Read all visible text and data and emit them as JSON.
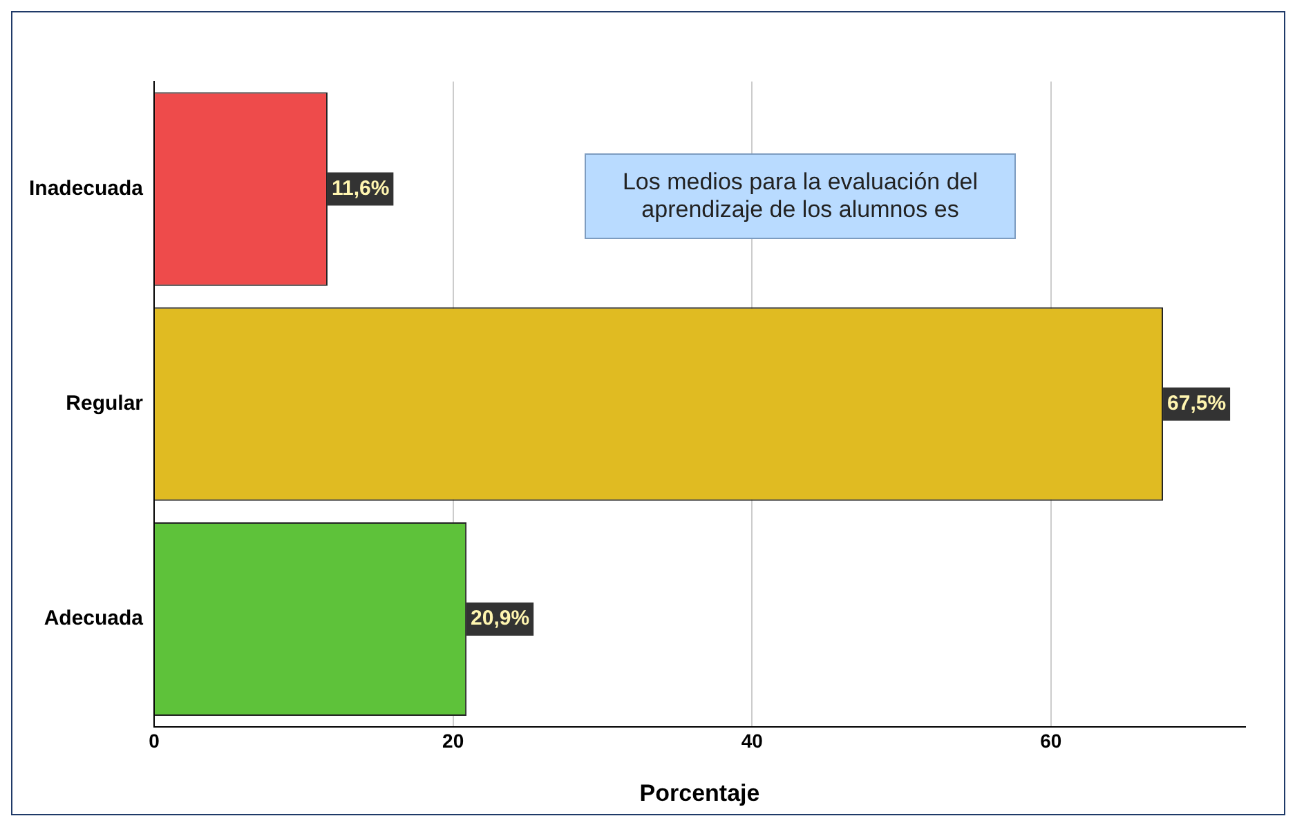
{
  "chart_data": {
    "type": "bar",
    "orientation": "horizontal",
    "categories": [
      "Inadecuada",
      "Regular",
      "Adecuada"
    ],
    "values": [
      11.6,
      67.5,
      20.9
    ],
    "colors": [
      "#ee4b4b",
      "#e0bb22",
      "#5ec23a"
    ],
    "value_labels": [
      "11,6%",
      "67,5%",
      "20,9%"
    ],
    "xlabel": "Porcentaje",
    "xlim": [
      0,
      73
    ],
    "xticks": [
      0,
      20,
      40,
      60
    ],
    "grid": "x",
    "legend": false,
    "annotations": [
      "Los medios para la evaluación del aprendizaje de los alumnos es"
    ]
  }
}
